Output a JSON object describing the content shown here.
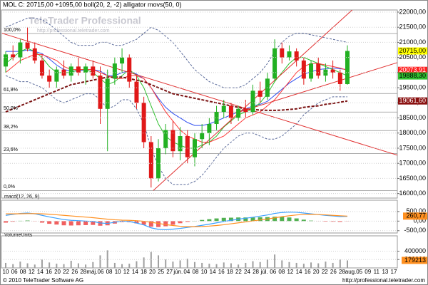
{
  "chart_data": [
    {
      "type": "candlestick",
      "title": "MOL C: 20715,00 +1095,00 boll(20, 2, -2) alligator movs(50, 0)",
      "watermark": "TeleTrader Professional",
      "watermark_url": "http://professional.teletrader.com",
      "color_up": "#22b022",
      "color_down": "#e01818",
      "open": [
        20200,
        20600,
        20500,
        21000,
        20800,
        20400,
        19900,
        19700,
        20100,
        19900,
        20200,
        20000,
        20200,
        19900,
        18800,
        19800,
        20300,
        20500,
        19700,
        19000,
        17700,
        16500,
        17500,
        18100,
        17400,
        17900,
        17200,
        17800,
        18000,
        18300,
        18700,
        18900,
        18500,
        18800,
        18700,
        19400,
        19200,
        19800,
        20800,
        20500,
        20700,
        20400,
        19800,
        20300,
        19900,
        20100,
        20000,
        19620
      ],
      "high": [
        20700,
        20900,
        21100,
        21500,
        21000,
        20600,
        20100,
        20200,
        20400,
        20300,
        20500,
        20300,
        20400,
        20200,
        20100,
        20500,
        20800,
        20600,
        19900,
        19200,
        17900,
        17800,
        18300,
        18400,
        18200,
        18100,
        18000,
        18300,
        18500,
        18900,
        19100,
        19000,
        18900,
        19100,
        19600,
        19700,
        20000,
        21100,
        21000,
        20900,
        20800,
        20500,
        20400,
        20500,
        20300,
        20400,
        20100,
        20900
      ],
      "low": [
        20000,
        20400,
        20300,
        20700,
        20300,
        19800,
        19500,
        19500,
        19800,
        19700,
        19900,
        19600,
        19800,
        18300,
        17400,
        19600,
        20000,
        19500,
        18800,
        17500,
        16200,
        16400,
        17300,
        17200,
        17100,
        17000,
        16900,
        17500,
        17600,
        18100,
        18500,
        18300,
        18400,
        18500,
        18600,
        19000,
        19100,
        19700,
        20300,
        20400,
        20200,
        19600,
        19700,
        19800,
        19700,
        19800,
        19400,
        19600
      ],
      "close": [
        20600,
        20500,
        21000,
        20800,
        20400,
        19900,
        19700,
        20100,
        19900,
        20200,
        20000,
        20200,
        19900,
        18800,
        19800,
        20300,
        20500,
        19700,
        19000,
        17700,
        16500,
        17500,
        18100,
        17400,
        17900,
        17200,
        17800,
        18000,
        18300,
        18700,
        18900,
        18500,
        18800,
        18700,
        19400,
        19200,
        19800,
        20800,
        20500,
        20700,
        20400,
        19800,
        20300,
        19900,
        20100,
        20000,
        19620,
        20715
      ],
      "series": [
        {
          "color": "#5a6a9a",
          "dash": true,
          "values": [
            21500,
            21600,
            21700,
            21800,
            21800,
            21750,
            21600,
            21400,
            21200,
            21000,
            20900,
            20900,
            20900,
            21000,
            21000,
            20900,
            20900,
            21000,
            21100,
            21300,
            21500,
            21400,
            21200,
            21000,
            20700,
            20400,
            20100,
            19900,
            19700,
            19600,
            19500,
            19500,
            19500,
            19600,
            19800,
            20000,
            20300,
            20700,
            21000,
            21200,
            21300,
            21300,
            21250,
            21200,
            21150,
            21100,
            21050,
            21000
          ]
        },
        {
          "color": "#5a6a9a",
          "dash": true,
          "values": [
            19900,
            19800,
            19700,
            19700,
            19600,
            19500,
            19300,
            19100,
            19000,
            19100,
            19200,
            19300,
            19300,
            19100,
            18800,
            18900,
            19100,
            19100,
            18800,
            18300,
            17500,
            16900,
            16500,
            16300,
            16300,
            16300,
            16400,
            16600,
            16900,
            17200,
            17500,
            17700,
            17900,
            18000,
            18000,
            17900,
            17800,
            17800,
            17900,
            18100,
            18300,
            18600,
            18800,
            19000,
            19100,
            19200,
            19200,
            19200
          ]
        },
        {
          "color": "#3050f0",
          "dash": false,
          "values": [
            20700,
            20700,
            20700,
            20750,
            20700,
            20625,
            20450,
            20250,
            20100,
            20050,
            20050,
            20100,
            20100,
            20050,
            19900,
            19900,
            20000,
            20050,
            19950,
            19800,
            19500,
            19150,
            18850,
            18650,
            18500,
            18350,
            18250,
            18250,
            18300,
            18400,
            18500,
            18600,
            18700,
            18800,
            18900,
            18950,
            19050,
            19250,
            19450,
            19650,
            19800,
            19950,
            20025,
            20100,
            20125,
            20150,
            20125,
            20100
          ]
        },
        {
          "color": "#30c030",
          "dash": false,
          "values": [
            20300,
            20500,
            20700,
            20800,
            20700,
            20500,
            20200,
            20000,
            20000,
            20000,
            20100,
            20100,
            20000,
            19800,
            19600,
            19700,
            19900,
            20100,
            19900,
            19500,
            18900,
            18300,
            17900,
            17700,
            17600,
            17500,
            17500,
            17600,
            17700,
            17900,
            18200,
            18400,
            18600,
            18700,
            18800,
            19000,
            19300,
            19700,
            20000,
            20300,
            20500,
            20500,
            20400,
            20300,
            20200,
            20100,
            20000,
            19888.3
          ]
        },
        {
          "color": "#ff3838",
          "dash": false,
          "values": [
            20000,
            20200,
            20400,
            20500,
            20600,
            20600,
            20500,
            20400,
            20200,
            20100,
            20100,
            20100,
            20100,
            20000,
            19900,
            19800,
            19800,
            19900,
            19900,
            19800,
            19500,
            19100,
            18700,
            18400,
            18100,
            17900,
            17800,
            17700,
            17700,
            17800,
            17900,
            18100,
            18300,
            18500,
            18600,
            18700,
            18900,
            19100,
            19400,
            19700,
            20000,
            20200,
            20300,
            20300,
            20250,
            20200,
            20150,
            20073.91
          ]
        },
        {
          "color": "#7a1010",
          "dash": true,
          "thick": true,
          "values": [
            18700,
            18800,
            18900,
            19000,
            19100,
            19200,
            19300,
            19400,
            19500,
            19600,
            19650,
            19700,
            19750,
            19800,
            19850,
            19850,
            19850,
            19800,
            19750,
            19700,
            19600,
            19500,
            19400,
            19300,
            19250,
            19200,
            19150,
            19100,
            19050,
            19000,
            18950,
            18900,
            18850,
            18800,
            18780,
            18760,
            18750,
            18750,
            18760,
            18780,
            18800,
            18850,
            18880,
            18900,
            18950,
            18980,
            19020,
            19061.6
          ]
        }
      ],
      "ylim": [
        15850,
        22070
      ],
      "yticks": [
        {
          "value": 16000,
          "label": "16000,00"
        },
        {
          "value": 16500,
          "label": "16500,00"
        },
        {
          "value": 17000,
          "label": "17000,00"
        },
        {
          "value": 17500,
          "label": "17500,00"
        },
        {
          "value": 18000,
          "label": "18000,00"
        },
        {
          "value": 18500,
          "label": "18500,00"
        },
        {
          "value": 19000,
          "label": "19000,00"
        },
        {
          "value": 19500,
          "label": "19500,00"
        },
        {
          "value": 20000,
          "label": "20000,00"
        },
        {
          "value": 20500,
          "label": "20500,00"
        },
        {
          "value": 21000,
          "label": "21000,00"
        },
        {
          "value": 21500,
          "label": "21500,00"
        },
        {
          "value": 22000,
          "label": "22000,00"
        }
      ],
      "fib_levels": [
        {
          "value": 21290,
          "label": "100,0%"
        },
        {
          "value": 19307,
          "label": "61,8%"
        },
        {
          "value": 18695,
          "label": "50,0%"
        },
        {
          "value": 18083,
          "label": "38,2%"
        },
        {
          "value": 17325,
          "label": "23,6%"
        },
        {
          "value": 16100,
          "label": "0,0%"
        }
      ],
      "trend_lines": [
        {
          "x": [
            -0.5,
            54
          ],
          "y": [
            21300,
            17260
          ],
          "color": "#e03030"
        },
        {
          "x": [
            20.3,
            48.3
          ],
          "y": [
            16100,
            22210
          ],
          "color": "#e03030"
        },
        {
          "x": [
            31.6,
            54
          ],
          "y": [
            18660,
            20340
          ],
          "color": "#e03030"
        }
      ],
      "price_tags": [
        {
          "value": 20715,
          "label": "20715,00",
          "color": "#ffff00",
          "text_color": "#000000"
        },
        {
          "value": 20073.91,
          "label": "20073,91",
          "color": "#ff2020",
          "text_color": "#ffffff"
        },
        {
          "value": 19888.3,
          "label": "19888,30",
          "color": "#30c030",
          "text_color": "#000000"
        },
        {
          "value": 19061.6,
          "label": "19061,60",
          "color": "#8a1010",
          "text_color": "#ffffff"
        }
      ],
      "x_labels": [
        "10",
        "06",
        "08",
        "12",
        "14",
        "16",
        "20",
        "22",
        "26",
        "28",
        "máj.",
        "06",
        "08",
        "10",
        "12",
        "14",
        "18",
        "20",
        "25",
        "27",
        "jún.",
        "04",
        "08",
        "10",
        "14",
        "16",
        "18",
        "22",
        "24",
        "28",
        "júl.",
        "06",
        "08",
        "12",
        "14",
        "16",
        "20",
        "22",
        "26",
        "28",
        "aug.",
        "05",
        "09",
        "11",
        "13",
        "17"
      ]
    },
    {
      "type": "line",
      "title": "macd(12, 26, 9)",
      "series": [
        {
          "color": "#3aa0ff",
          "values": [
            300,
            350,
            400,
            420,
            380,
            300,
            220,
            150,
            80,
            40,
            20,
            0,
            -20,
            -100,
            -120,
            -60,
            0,
            -20,
            -100,
            -200,
            -350,
            -430,
            -450,
            -420,
            -380,
            -330,
            -280,
            -220,
            -160,
            -90,
            -20,
            40,
            100,
            150,
            200,
            260,
            320,
            400,
            450,
            470,
            460,
            420,
            380,
            340,
            300,
            270,
            240,
            250
          ]
        },
        {
          "color": "#ff9020",
          "values": [
            380,
            380,
            385,
            390,
            390,
            380,
            360,
            330,
            300,
            270,
            240,
            210,
            180,
            140,
            100,
            70,
            50,
            40,
            20,
            -10,
            -60,
            -120,
            -180,
            -230,
            -270,
            -290,
            -290,
            -280,
            -260,
            -230,
            -190,
            -140,
            -90,
            -40,
            10,
            60,
            110,
            170,
            230,
            280,
            320,
            345,
            355,
            345,
            325,
            300,
            280,
            260.77
          ]
        }
      ],
      "histogram": {
        "color_pos": "#50b050",
        "color_neg": "#f06060",
        "values": [
          -80,
          -30,
          15,
          30,
          -10,
          -80,
          -140,
          -180,
          -220,
          -230,
          -220,
          -210,
          -200,
          -240,
          -220,
          -130,
          -50,
          -60,
          -120,
          -190,
          -290,
          -310,
          -270,
          -190,
          -110,
          -40,
          10,
          60,
          100,
          140,
          170,
          180,
          190,
          190,
          190,
          200,
          210,
          230,
          220,
          190,
          140,
          75,
          25,
          -5,
          -25,
          -30,
          -40,
          -11
        ]
      },
      "tag": {
        "value": 260.77,
        "label": "260,77",
        "color": "#ff9020"
      },
      "ylim": [
        -620,
        1090
      ],
      "yticks": [
        {
          "value": 500,
          "label": "500,00"
        },
        {
          "value": 0,
          "label": "0,00"
        },
        {
          "value": -500,
          "label": "-500,00"
        }
      ]
    },
    {
      "type": "bar",
      "title": "VolumeUnits",
      "color": "#a0a0a0",
      "tag_color": "#ff9020",
      "values": [
        120000,
        90000,
        150000,
        110000,
        80000,
        200000,
        130000,
        100000,
        90000,
        170000,
        110000,
        80000,
        140000,
        300000,
        420000,
        120000,
        90000,
        100000,
        160000,
        250000,
        380000,
        300000,
        200000,
        150000,
        180000,
        220000,
        140000,
        120000,
        100000,
        90000,
        130000,
        110000,
        80000,
        120000,
        160000,
        140000,
        200000,
        320000,
        180000,
        140000,
        120000,
        100000,
        130000,
        110000,
        150000,
        120000,
        200000,
        179213
      ],
      "ylim": [
        0,
        766000
      ],
      "yticks": [
        200000,
        400000
      ]
    }
  ],
  "footer": {
    "left": "© 2010 TeleTrader Software AG",
    "right": "http://professional.teletrader.com"
  }
}
